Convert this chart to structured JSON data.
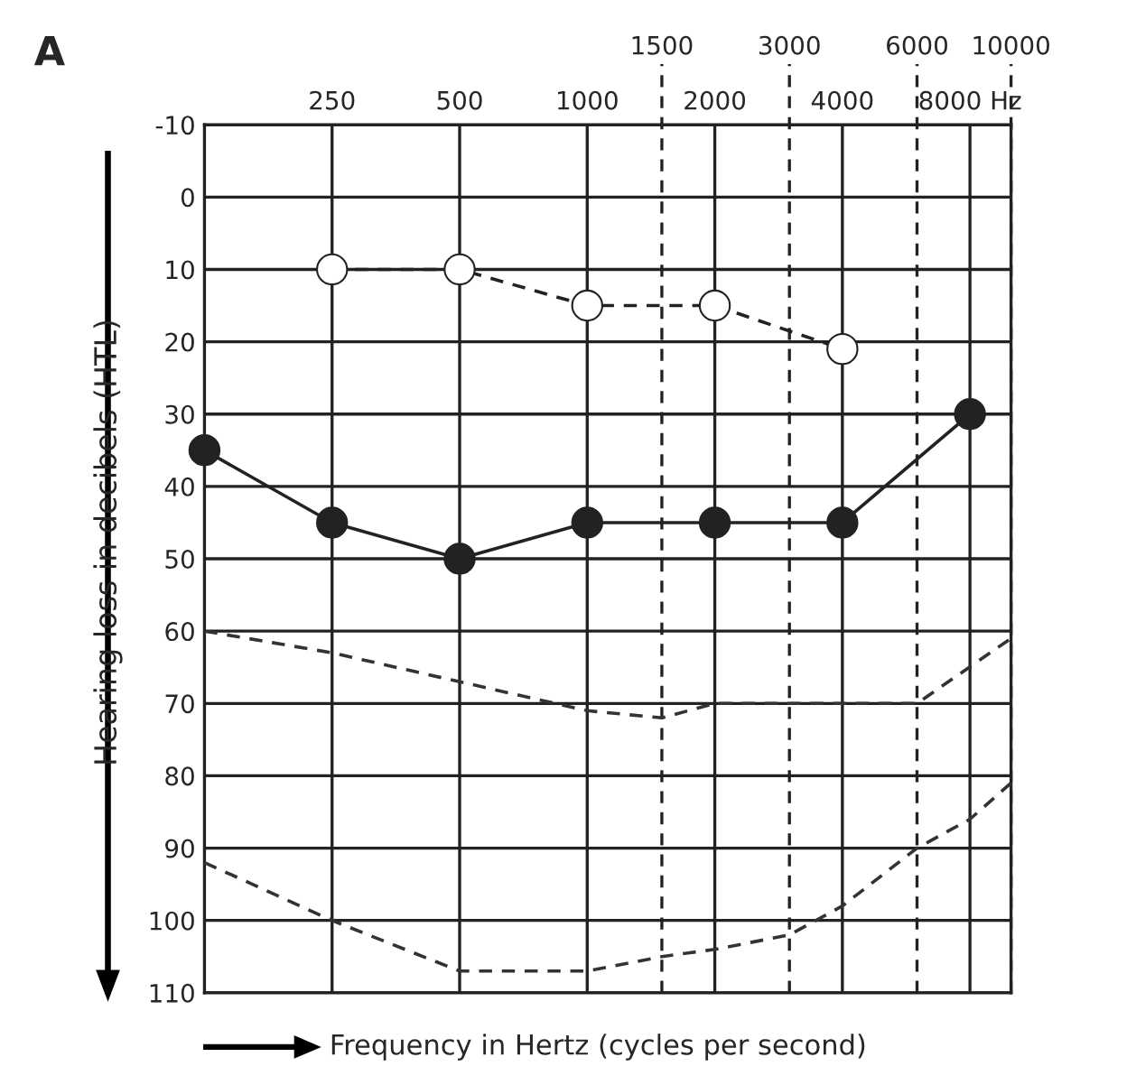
{
  "chart_data": {
    "type": "line",
    "ylabel": "Hearing loss in decibels (HTL)",
    "xlabel": "Frequency in Hertz (cycles per second)",
    "annotations": [
      "A"
    ],
    "log": "x",
    "xlim": [
      125,
      10000
    ],
    "xticks": [
      250,
      500,
      1000,
      2000,
      4000,
      {
        "value": 8000,
        "label": "8000 Hz"
      }
    ],
    "ref_lines": [
      {
        "axis": "x",
        "value": 1500,
        "label": "1500",
        "line_style": "dashed"
      },
      {
        "axis": "x",
        "value": 3000,
        "label": "3000",
        "line_style": "dashed"
      },
      {
        "axis": "x",
        "value": 6000,
        "label": "6000",
        "line_style": "dashed"
      },
      {
        "axis": "x",
        "value": 10000,
        "label": "10000",
        "line_style": "dashed"
      }
    ],
    "ylim": [
      110,
      -10
    ],
    "yticks": [
      -10,
      0,
      10,
      20,
      30,
      40,
      50,
      60,
      70,
      80,
      90,
      100,
      110
    ],
    "grid": true,
    "series": [
      {
        "color": "#ffffff",
        "marker": "circle",
        "line_style": "dashed",
        "x": [
          250,
          500,
          1000,
          2000,
          4000
        ],
        "values": [
          10,
          10,
          15,
          15,
          21
        ]
      },
      {
        "color": "#222222",
        "marker": "circle",
        "line_style": "solid",
        "x": [
          125,
          250,
          500,
          1000,
          2000,
          4000,
          8000
        ],
        "values": [
          35,
          45,
          50,
          45,
          45,
          45,
          30
        ]
      },
      {
        "color": "#333333",
        "marker": "none",
        "line_style": "dashed",
        "x": [
          125,
          250,
          500,
          1000,
          1500,
          2000,
          3000,
          6000,
          10000
        ],
        "values": [
          60,
          63,
          67,
          71,
          72,
          70,
          70,
          70,
          61
        ]
      },
      {
        "color": "#333333",
        "marker": "none",
        "line_style": "dashed",
        "x": [
          125,
          250,
          500,
          1000,
          1500,
          2000,
          3000,
          4000,
          6000,
          8000,
          10000
        ],
        "values": [
          92,
          100,
          107,
          107,
          105,
          104,
          102,
          98,
          90,
          86,
          81
        ]
      }
    ]
  }
}
